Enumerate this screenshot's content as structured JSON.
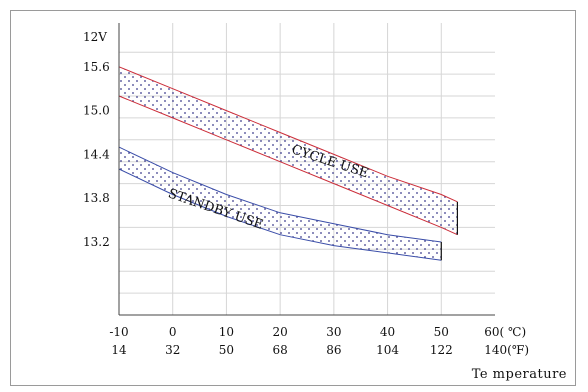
{
  "chart_data": {
    "type": "area",
    "y_unit_label": "12V",
    "x_axis_title": "Te mperature",
    "y_ticks": [
      "15.6",
      "15.0",
      "14.4",
      "13.8",
      "13.2"
    ],
    "x_ticks_celsius": [
      "-10",
      "0",
      "10",
      "20",
      "30",
      "40",
      "50"
    ],
    "x_tick_celsius_end": "60( ℃)",
    "x_ticks_fahrenheit": [
      "14",
      "32",
      "50",
      "68",
      "86",
      "104",
      "122"
    ],
    "x_tick_fahrenheit_end": "140(℉)",
    "grid": true,
    "xlim": [
      -10,
      60
    ],
    "ylim": [
      12.2,
      16.2
    ],
    "series": [
      {
        "name": "CYCLE USE",
        "color": "#cc2e3a",
        "upper": [
          [
            -10,
            15.6
          ],
          [
            0,
            15.3
          ],
          [
            10,
            15.0
          ],
          [
            20,
            14.7
          ],
          [
            30,
            14.4
          ],
          [
            40,
            14.1
          ],
          [
            50,
            13.85
          ],
          [
            53,
            13.75
          ]
        ],
        "lower": [
          [
            -10,
            15.2
          ],
          [
            0,
            14.9
          ],
          [
            10,
            14.6
          ],
          [
            20,
            14.3
          ],
          [
            30,
            14.0
          ],
          [
            40,
            13.7
          ],
          [
            50,
            13.4
          ],
          [
            53,
            13.3
          ]
        ]
      },
      {
        "name": "STANDBY USE",
        "color": "#3a4da8",
        "upper": [
          [
            -10,
            14.5
          ],
          [
            0,
            14.15
          ],
          [
            10,
            13.85
          ],
          [
            20,
            13.6
          ],
          [
            30,
            13.45
          ],
          [
            40,
            13.3
          ],
          [
            50,
            13.2
          ]
        ],
        "lower": [
          [
            -10,
            14.2
          ],
          [
            0,
            13.85
          ],
          [
            10,
            13.55
          ],
          [
            20,
            13.3
          ],
          [
            30,
            13.15
          ],
          [
            40,
            13.05
          ],
          [
            50,
            12.95
          ]
        ]
      }
    ]
  }
}
